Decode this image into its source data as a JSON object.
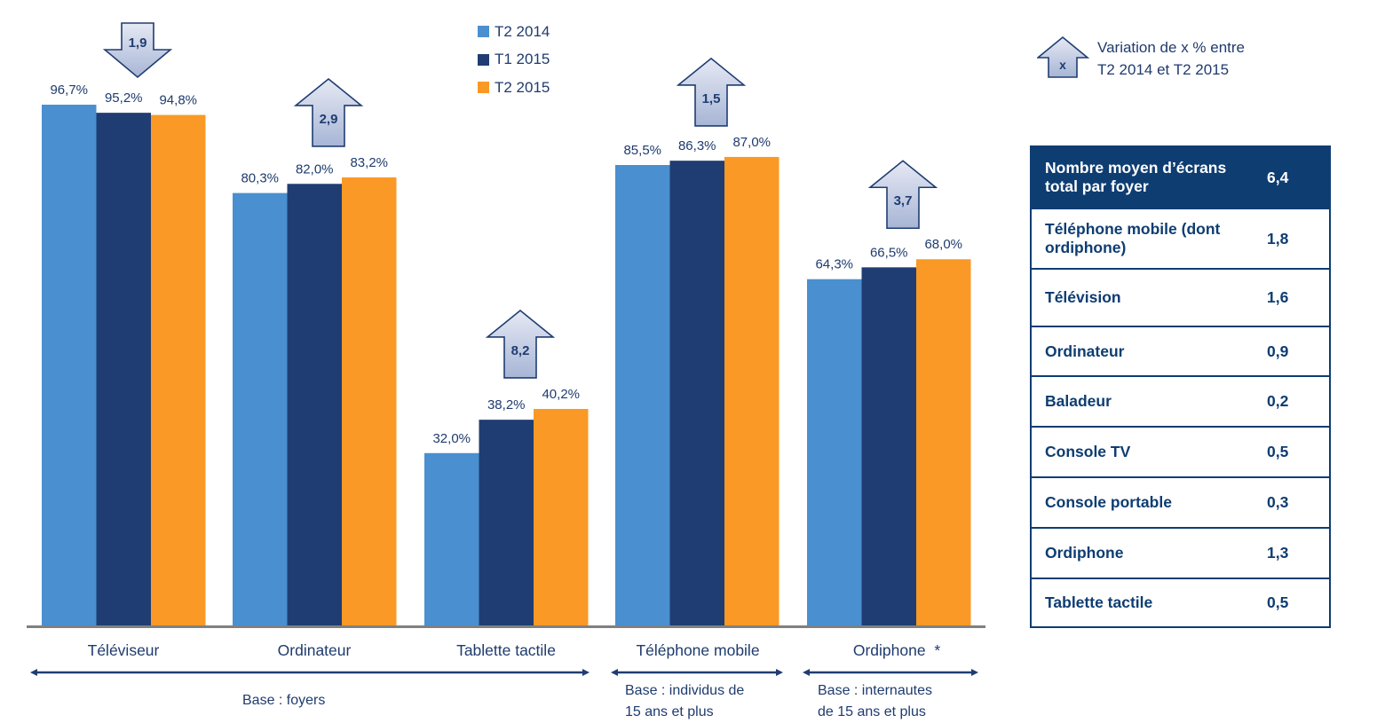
{
  "chart_data": {
    "type": "bar",
    "title": "",
    "xlabel": "",
    "ylabel": "",
    "ylim": [
      0,
      100
    ],
    "grid": false,
    "categories": [
      "Téléviseur",
      "Ordinateur",
      "Tablette tactile",
      "Téléphone mobile",
      "Ordiphone  *"
    ],
    "series": [
      {
        "name": "T2 2014",
        "color": "#4a8fd0",
        "values": [
          96.7,
          80.3,
          32.0,
          85.5,
          64.3
        ],
        "labels": [
          "96,7%",
          "80,3%",
          "32,0%",
          "85,5%",
          "64,3%"
        ]
      },
      {
        "name": "T1 2015",
        "color": "#1f3d72",
        "values": [
          95.2,
          82.0,
          38.2,
          86.3,
          66.5
        ],
        "labels": [
          "95,2%",
          "82,0%",
          "38,2%",
          "86,3%",
          "66,5%"
        ]
      },
      {
        "name": "T2 2015",
        "color": "#fa9926",
        "values": [
          94.8,
          83.2,
          40.2,
          87.0,
          68.0
        ],
        "labels": [
          "94,8%",
          "83,2%",
          "40,2%",
          "87,0%",
          "68,0%"
        ]
      }
    ],
    "variations": [
      {
        "category": "Téléviseur",
        "direction": "down",
        "label": "1,9"
      },
      {
        "category": "Ordinateur",
        "direction": "up",
        "label": "2,9"
      },
      {
        "category": "Tablette tactile",
        "direction": "up",
        "label": "8,2"
      },
      {
        "category": "Téléphone mobile",
        "direction": "up",
        "label": "1,5"
      },
      {
        "category": "Ordiphone",
        "direction": "up",
        "label": "3,7"
      }
    ],
    "legend_position": "top-center",
    "variation_legend": {
      "symbol": "x",
      "text_line1": "Variation de x % entre",
      "text_line2": "T2 2014 et T2 2015"
    },
    "bases": [
      {
        "label": "Base : foyers",
        "spans": [
          "Téléviseur",
          "Ordinateur",
          "Tablette tactile"
        ]
      },
      {
        "label_line1": "Base : individus de",
        "label_line2": "15 ans et plus",
        "spans": [
          "Téléphone mobile"
        ]
      },
      {
        "label_line1": "Base : internautes",
        "label_line2": "de 15 ans et plus",
        "spans": [
          "Ordiphone"
        ]
      }
    ]
  },
  "screens_table": {
    "header": {
      "label_line1": "Nombre moyen d’écrans",
      "label_line2": "total par foyer",
      "value": "6,4"
    },
    "rows": [
      {
        "label_line1": "Téléphone mobile (dont",
        "label_line2": "ordiphone)",
        "value": "1,8"
      },
      {
        "label": "Télévision",
        "value": "1,6"
      },
      {
        "label": "Ordinateur",
        "value": "0,9"
      },
      {
        "label": "Baladeur",
        "value": "0,2"
      },
      {
        "label": "Console TV",
        "value": "0,5"
      },
      {
        "label": "Console portable",
        "value": "0,3"
      },
      {
        "label": "Ordiphone",
        "value": "1,3"
      },
      {
        "label": "Tablette tactile",
        "value": "0,5"
      }
    ]
  },
  "colors": {
    "arrow_stroke": "#1f3d72",
    "arrow_fill_top": "#e4e8f3",
    "arrow_fill_bottom": "#a9b7d6",
    "axis": "#808080",
    "table_header": "#0e3d72"
  }
}
